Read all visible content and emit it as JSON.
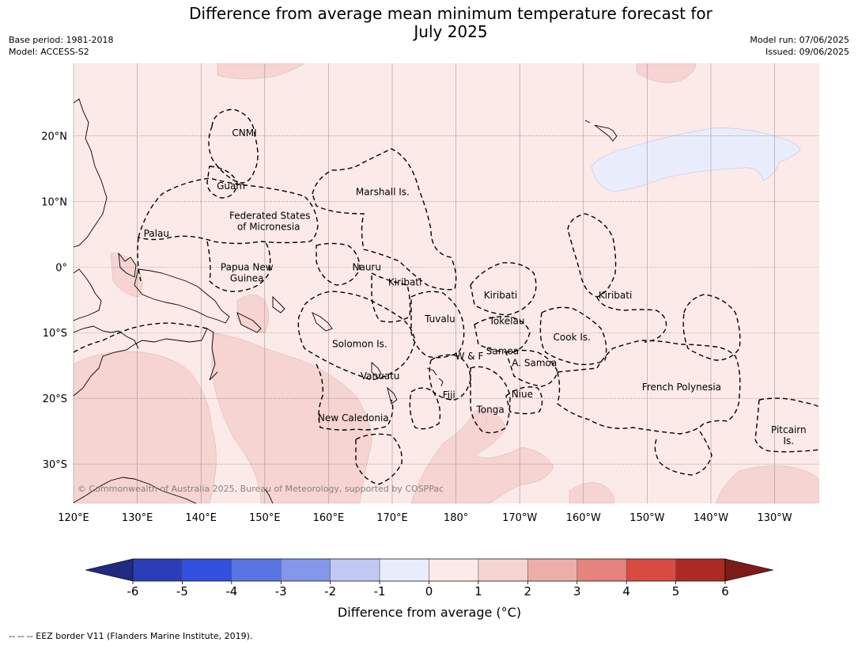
{
  "title": {
    "line1": "Difference from average mean minimum temperature forecast for",
    "line2": "July 2025"
  },
  "meta_left": {
    "base_period": "Base period: 1981-2018",
    "model": "Model: ACCESS-S2"
  },
  "meta_right": {
    "model_run": "Model run: 07/06/2025",
    "issued": "Issued: 09/06/2025"
  },
  "map": {
    "lat_ticks": [
      {
        "value": 20,
        "label": "20°N"
      },
      {
        "value": 10,
        "label": "10°N"
      },
      {
        "value": 0,
        "label": "0°"
      },
      {
        "value": -10,
        "label": "10°S"
      },
      {
        "value": -20,
        "label": "20°S"
      },
      {
        "value": -30,
        "label": "30°S"
      }
    ],
    "lon_ticks": [
      {
        "value": 120,
        "label": "120°E"
      },
      {
        "value": 130,
        "label": "130°E"
      },
      {
        "value": 140,
        "label": "140°E"
      },
      {
        "value": 150,
        "label": "150°E"
      },
      {
        "value": 160,
        "label": "160°E"
      },
      {
        "value": 170,
        "label": "170°E"
      },
      {
        "value": 180,
        "label": "180°"
      },
      {
        "value": 190,
        "label": "170°W"
      },
      {
        "value": 200,
        "label": "160°W"
      },
      {
        "value": 210,
        "label": "150°W"
      },
      {
        "value": 220,
        "label": "140°W"
      },
      {
        "value": 230,
        "label": "130°W"
      }
    ],
    "extent": {
      "lon": [
        120,
        237
      ],
      "lat": [
        -36,
        31
      ]
    },
    "background_color": "#fbeae8",
    "places": [
      {
        "name": "CNMI",
        "lon": 146.8,
        "lat": 20.4
      },
      {
        "name": "Guam",
        "lon": 144.7,
        "lat": 12.3
      },
      {
        "name": "Marshall Is.",
        "lon": 168.5,
        "lat": 11.4
      },
      {
        "name": "Federated States",
        "lon": 150.8,
        "lat": 7.8
      },
      {
        "name": "of Micronesia",
        "lon": 150.6,
        "lat": 6.1
      },
      {
        "name": "Palau",
        "lon": 133.0,
        "lat": 5.1
      },
      {
        "name": "Papua New",
        "lon": 147.2,
        "lat": 0.0
      },
      {
        "name": "Guinea",
        "lon": 147.2,
        "lat": -1.7
      },
      {
        "name": "Nauru",
        "lon": 166.0,
        "lat": 0.0
      },
      {
        "name": "Kiribati",
        "lon": 172.0,
        "lat": -2.3
      },
      {
        "name": "Kiribati",
        "lon": 187.0,
        "lat": -4.3
      },
      {
        "name": "Kiribati",
        "lon": 205.0,
        "lat": -4.3
      },
      {
        "name": "Tuvalu",
        "lon": 177.5,
        "lat": -7.9
      },
      {
        "name": "Tokelau",
        "lon": 188.0,
        "lat": -8.2
      },
      {
        "name": "Cook Is.",
        "lon": 198.2,
        "lat": -10.7
      },
      {
        "name": "Solomon Is.",
        "lon": 164.9,
        "lat": -11.7
      },
      {
        "name": "Samoa",
        "lon": 187.3,
        "lat": -12.8
      },
      {
        "name": "W & F",
        "lon": 182.1,
        "lat": -13.6
      },
      {
        "name": "A. Samoa",
        "lon": 192.3,
        "lat": -14.6
      },
      {
        "name": "Vanuatu",
        "lon": 168.1,
        "lat": -16.6
      },
      {
        "name": "Fiji",
        "lon": 178.9,
        "lat": -19.5
      },
      {
        "name": "Niue",
        "lon": 190.4,
        "lat": -19.4
      },
      {
        "name": "French Polynesia",
        "lon": 215.4,
        "lat": -18.3
      },
      {
        "name": "Tonga",
        "lon": 185.4,
        "lat": -21.7
      },
      {
        "name": "New Caledonia",
        "lon": 163.9,
        "lat": -23.0
      },
      {
        "name": "Pitcairn",
        "lon": 232.2,
        "lat": -24.8
      },
      {
        "name": "Is.",
        "lon": 232.2,
        "lat": -26.5
      }
    ],
    "copyright": "© Commonwealth of Australia 2025, Bureau of Meteorology, supported by COSPPac"
  },
  "colorbar": {
    "title": "Difference from average (°C)",
    "ticks": [
      "-6",
      "-5",
      "-4",
      "-3",
      "-2",
      "-1",
      "0",
      "1",
      "2",
      "3",
      "4",
      "5",
      "6"
    ],
    "colors": [
      "#1f2a80",
      "#2a3eb8",
      "#3150e0",
      "#5a74e4",
      "#8597ea",
      "#c0c8f3",
      "#e9ecfb",
      "#fbeae8",
      "#f5d4d1",
      "#edaeaa",
      "#e5837d",
      "#d94a40",
      "#ad2a22",
      "#7c1c18"
    ]
  },
  "footer": "--  --  -- EEZ border V11 (Flanders Marine Institute, 2019)."
}
